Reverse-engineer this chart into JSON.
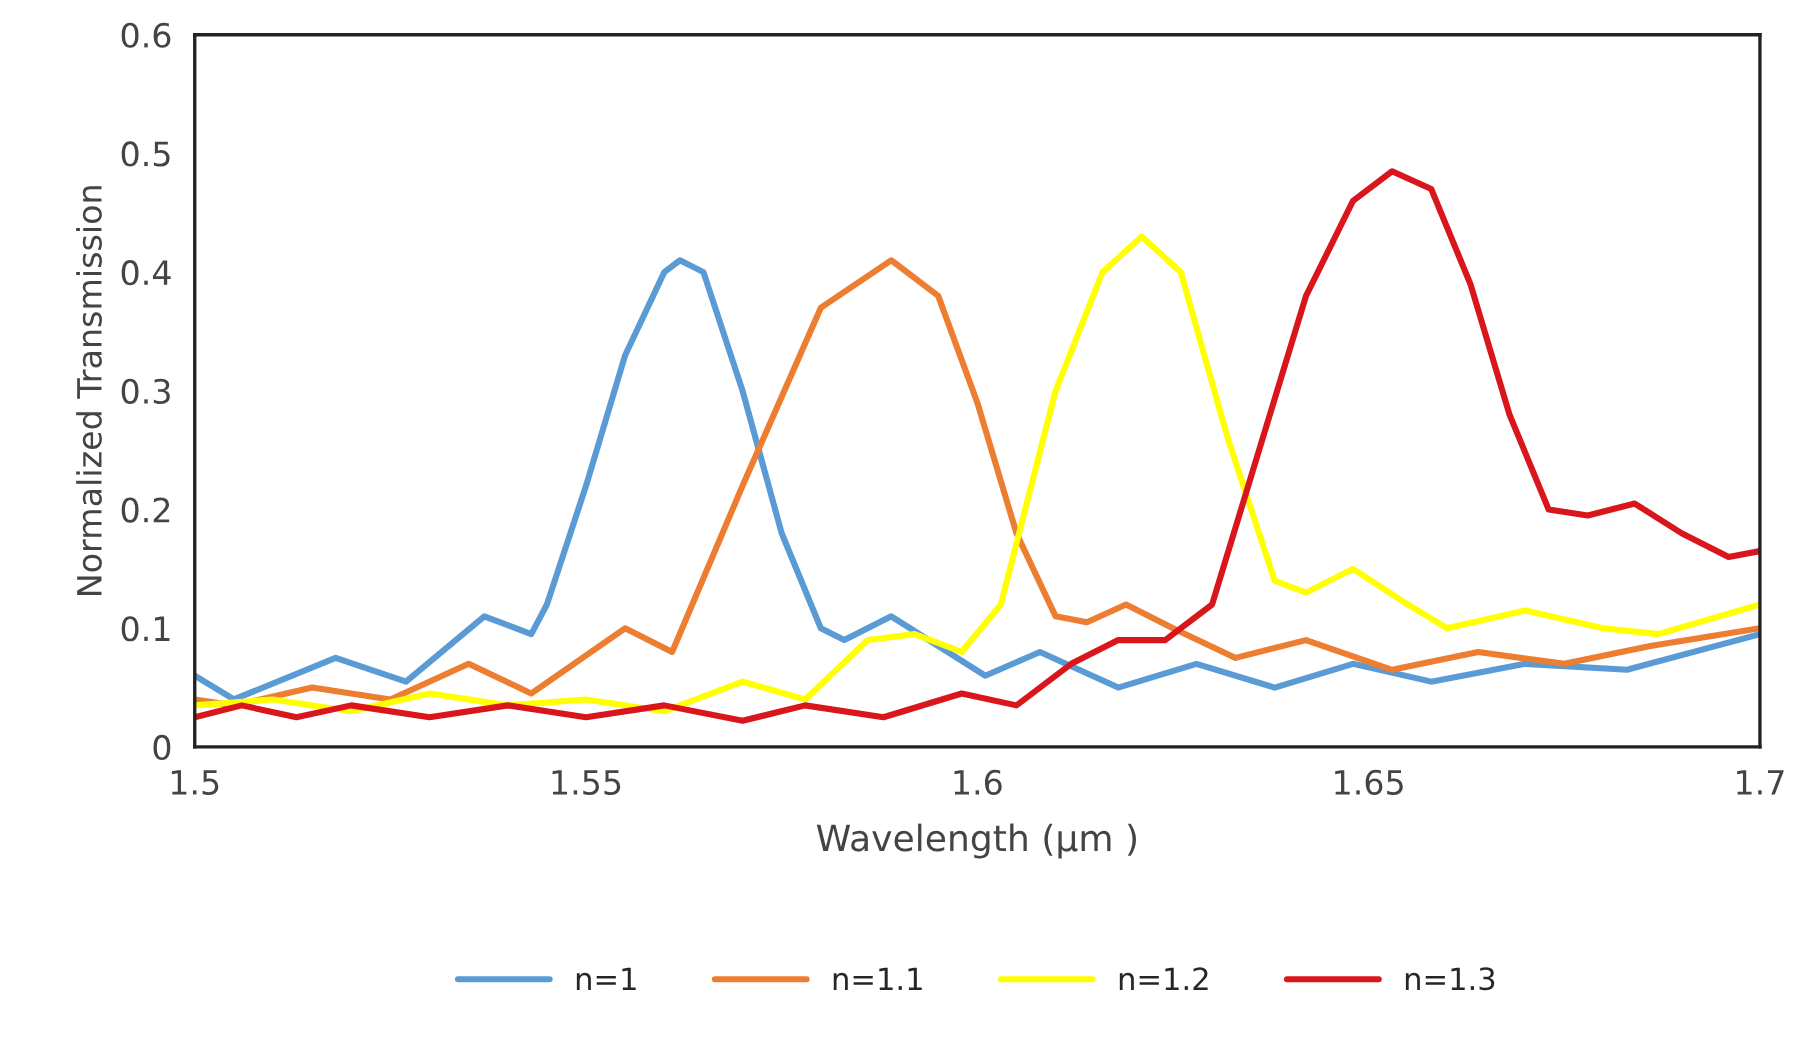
{
  "chart_data": {
    "type": "line",
    "xlabel": "Wavelength (μm )",
    "ylabel": "Normalized Transmission",
    "xlim": [
      1.5,
      1.7
    ],
    "xticks": [
      1.5,
      1.55,
      1.6,
      1.65,
      1.7
    ],
    "ylim": [
      0,
      0.6
    ],
    "yticks": [
      0,
      0.1,
      0.2,
      0.3,
      0.4,
      0.5,
      0.6
    ],
    "grid": false,
    "legend": "bottom",
    "marker": "none",
    "line_style": "solid",
    "series": [
      {
        "name": "n=1",
        "color": "#5b9bd5",
        "x": [
          1.5,
          1.505,
          1.518,
          1.527,
          1.537,
          1.543,
          1.545,
          1.55,
          1.555,
          1.56,
          1.562,
          1.565,
          1.57,
          1.575,
          1.58,
          1.583,
          1.589,
          1.601,
          1.608,
          1.618,
          1.628,
          1.638,
          1.648,
          1.658,
          1.67,
          1.683,
          1.7
        ],
        "values": [
          0.06,
          0.04,
          0.075,
          0.055,
          0.11,
          0.095,
          0.12,
          0.22,
          0.33,
          0.4,
          0.41,
          0.4,
          0.3,
          0.18,
          0.1,
          0.09,
          0.11,
          0.06,
          0.08,
          0.05,
          0.07,
          0.05,
          0.07,
          0.055,
          0.07,
          0.065,
          0.095
        ]
      },
      {
        "name": "n=1.1",
        "color": "#ed7d31",
        "x": [
          1.5,
          1.505,
          1.515,
          1.525,
          1.535,
          1.543,
          1.555,
          1.561,
          1.57,
          1.58,
          1.589,
          1.595,
          1.6,
          1.605,
          1.61,
          1.614,
          1.619,
          1.625,
          1.633,
          1.642,
          1.653,
          1.664,
          1.675,
          1.686,
          1.7
        ],
        "values": [
          0.04,
          0.035,
          0.05,
          0.04,
          0.07,
          0.045,
          0.1,
          0.08,
          0.22,
          0.37,
          0.41,
          0.38,
          0.29,
          0.18,
          0.11,
          0.105,
          0.12,
          0.1,
          0.075,
          0.09,
          0.065,
          0.08,
          0.07,
          0.085,
          0.1
        ]
      },
      {
        "name": "n=1.2",
        "color": "#ffff00",
        "x": [
          1.5,
          1.51,
          1.52,
          1.53,
          1.54,
          1.55,
          1.56,
          1.57,
          1.578,
          1.586,
          1.592,
          1.598,
          1.603,
          1.61,
          1.616,
          1.621,
          1.626,
          1.632,
          1.638,
          1.642,
          1.648,
          1.655,
          1.66,
          1.67,
          1.68,
          1.687,
          1.7
        ],
        "values": [
          0.035,
          0.04,
          0.03,
          0.045,
          0.035,
          0.04,
          0.03,
          0.055,
          0.04,
          0.09,
          0.095,
          0.08,
          0.12,
          0.3,
          0.4,
          0.43,
          0.4,
          0.26,
          0.14,
          0.13,
          0.15,
          0.12,
          0.1,
          0.115,
          0.1,
          0.095,
          0.12
        ]
      },
      {
        "name": "n=1.3",
        "color": "#d9161c",
        "x": [
          1.5,
          1.506,
          1.513,
          1.52,
          1.53,
          1.54,
          1.55,
          1.56,
          1.57,
          1.578,
          1.588,
          1.598,
          1.605,
          1.612,
          1.618,
          1.624,
          1.63,
          1.636,
          1.642,
          1.648,
          1.653,
          1.658,
          1.663,
          1.668,
          1.673,
          1.678,
          1.684,
          1.69,
          1.696,
          1.7
        ],
        "values": [
          0.025,
          0.035,
          0.025,
          0.035,
          0.025,
          0.035,
          0.025,
          0.035,
          0.022,
          0.035,
          0.025,
          0.045,
          0.035,
          0.07,
          0.09,
          0.09,
          0.12,
          0.25,
          0.38,
          0.46,
          0.485,
          0.47,
          0.39,
          0.28,
          0.2,
          0.195,
          0.205,
          0.18,
          0.16,
          0.165
        ]
      }
    ]
  }
}
